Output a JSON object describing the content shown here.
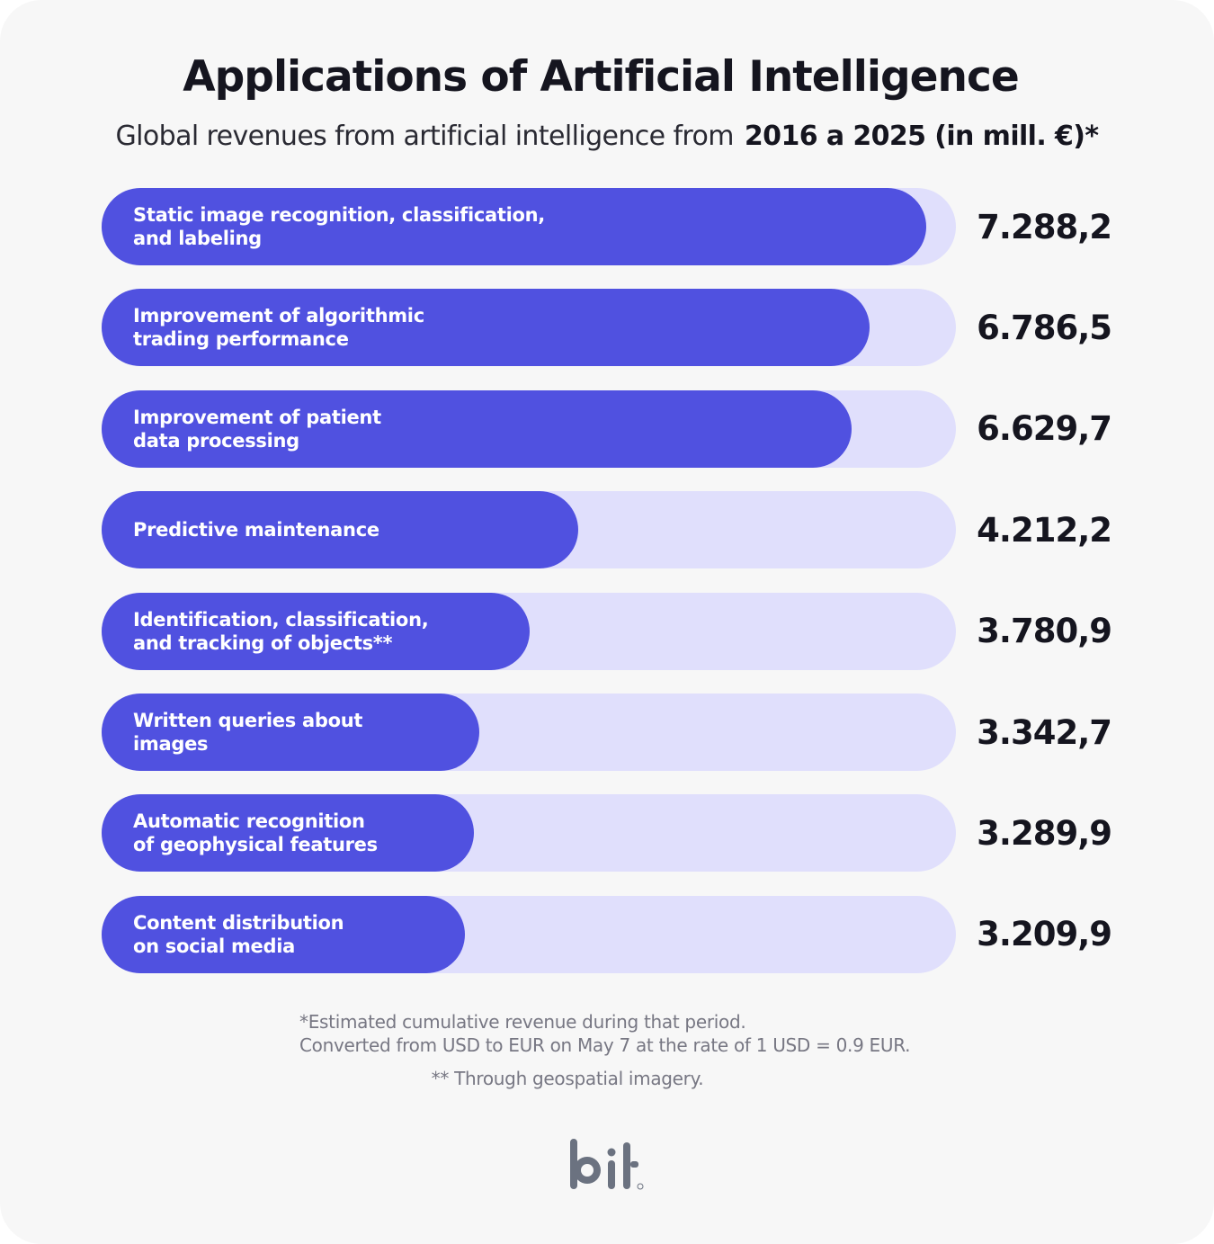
{
  "title": "Applications of Artificial Intelligence",
  "subtitle": {
    "text": "Global revenues from artificial intelligence from",
    "emphasis": "2016 a 2025 (in mill. €)*"
  },
  "colors": {
    "bar_fill": "#5051e0",
    "bar_track": "#e0dffc",
    "text_dark": "#15151f",
    "note_gray": "#777783",
    "logo_gray": "#6b7280"
  },
  "chart_data": {
    "type": "bar",
    "orientation": "horizontal",
    "title": "Applications of Artificial Intelligence",
    "subtitle": "Global revenues from artificial intelligence from 2016 a 2025 (in mill. €)*",
    "categories": [
      "Static image recognition, classification,\nand labeling",
      "Improvement of algorithmic\ntrading performance",
      "Improvement of patient\ndata processing",
      "Predictive maintenance",
      "Identification, classification,\nand tracking of objects**",
      "Written queries about\nimages",
      "Automatic recognition\nof geophysical features",
      "Content distribution\non social media"
    ],
    "values": [
      7288.2,
      6786.5,
      6629.7,
      4212.2,
      3780.9,
      3342.7,
      3289.9,
      3209.9
    ],
    "value_labels": [
      "7.288,2",
      "6.786,5",
      "6.629,7",
      "4.212,2",
      "3.780,9",
      "3.342,7",
      "3.289,9",
      "3.209,9"
    ],
    "xlabel": "",
    "ylabel": "",
    "grid": false,
    "legend": "none"
  },
  "notes": {
    "line1": "*Estimated cumulative revenue during that period.",
    "line2": "Converted from USD to EUR on May 7 at the rate of 1 USD = 0.9 EUR.",
    "line3": "** Through geospatial imagery."
  },
  "logo": {
    "text": "bit",
    "mark": "®"
  }
}
